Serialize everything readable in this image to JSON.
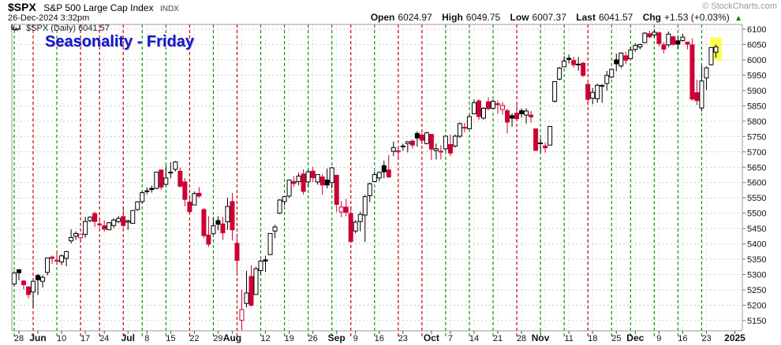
{
  "header": {
    "symbol": "$SPX",
    "name": "S&P 500 Large Cap Index",
    "exchange": "INDX",
    "datetime": "26-Dec-2024 3:32pm",
    "copyright": "© StockCharts.com",
    "quote": {
      "open_label": "Open",
      "open": "6024.97",
      "high_label": "High",
      "high": "6049.75",
      "low_label": "Low",
      "low": "6007.37",
      "last_label": "Last",
      "last": "6041.57",
      "chg_label": "Chg",
      "chg": "+1.53 (+0.03%)",
      "direction_glyph": "▲"
    }
  },
  "legend": {
    "series_label": "$SPX (Daily) 6041.57"
  },
  "annotation": {
    "title": "Seasonality - Friday"
  },
  "colors": {
    "candle_up": "#000000",
    "candle_down": "#cc0033",
    "friday_line_green": "#009900",
    "friday_line_red": "#cc0000",
    "grid": "#cccccc",
    "week_grid": "#c6c6c6",
    "border": "#999999",
    "axis_text": "#111111",
    "highlight": "#ffff55",
    "annotation_blue": "#1313d6",
    "chg_green": "#007700"
  },
  "chart_data": {
    "type": "candlestick",
    "title": "Seasonality - Friday",
    "symbol": "$SPX",
    "timeframe": "Daily",
    "last_value": 6041.57,
    "y_axis": {
      "min": 5150,
      "max": 6100,
      "step": 50,
      "side": "right",
      "grid": true
    },
    "x_labels": [
      [
        "28",
        1,
        0
      ],
      [
        "Jun",
        5,
        1
      ],
      [
        "10",
        10,
        0
      ],
      [
        "17",
        15,
        0
      ],
      [
        "24",
        19,
        0
      ],
      [
        "Jul",
        24,
        1
      ],
      [
        "8",
        28,
        0
      ],
      [
        "15",
        33,
        0
      ],
      [
        "22",
        38,
        0
      ],
      [
        "29",
        43,
        0
      ],
      [
        "Aug",
        46,
        1
      ],
      [
        "12",
        53,
        0
      ],
      [
        "19",
        58,
        0
      ],
      [
        "26",
        63,
        0
      ],
      [
        "Sep",
        68,
        1
      ],
      [
        "9",
        72,
        0
      ],
      [
        "16",
        77,
        0
      ],
      [
        "23",
        82,
        0
      ],
      [
        "Oct",
        88,
        1
      ],
      [
        "7",
        92,
        0
      ],
      [
        "14",
        97,
        0
      ],
      [
        "21",
        102,
        0
      ],
      [
        "28",
        107,
        0
      ],
      [
        "Nov",
        111,
        1
      ],
      [
        "11",
        117,
        0
      ],
      [
        "18",
        122,
        0
      ],
      [
        "25",
        127,
        0
      ],
      [
        "Dec",
        131,
        1
      ],
      [
        "9",
        136,
        0
      ],
      [
        "16",
        141,
        0
      ],
      [
        "23",
        146,
        0
      ],
      [
        "2025",
        152,
        1
      ]
    ],
    "friday_lines": [
      [
        0,
        "green"
      ],
      [
        4,
        "red"
      ],
      [
        9,
        "green"
      ],
      [
        14,
        "red"
      ],
      [
        18,
        "red"
      ],
      [
        23,
        "red"
      ],
      [
        27,
        "green"
      ],
      [
        32,
        "green"
      ],
      [
        37,
        "red"
      ],
      [
        42,
        "green"
      ],
      [
        47,
        "red"
      ],
      [
        52,
        "green"
      ],
      [
        57,
        "green"
      ],
      [
        62,
        "green"
      ],
      [
        67,
        "green"
      ],
      [
        71,
        "red"
      ],
      [
        76,
        "green"
      ],
      [
        81,
        "red"
      ],
      [
        86,
        "red"
      ],
      [
        91,
        "green"
      ],
      [
        96,
        "green"
      ],
      [
        101,
        "green"
      ],
      [
        106,
        "red"
      ],
      [
        111,
        "green"
      ],
      [
        116,
        "green"
      ],
      [
        121,
        "red"
      ],
      [
        126,
        "green"
      ],
      [
        130,
        "green"
      ],
      [
        135,
        "green"
      ],
      [
        140,
        "green"
      ],
      [
        145,
        "green"
      ]
    ],
    "monday_gridlines": [
      1,
      5,
      10,
      15,
      19,
      24,
      28,
      33,
      38,
      43,
      48,
      53,
      58,
      63,
      68,
      72,
      77,
      82,
      87,
      92,
      97,
      102,
      107,
      112,
      117,
      122,
      127,
      131,
      136,
      141,
      146
    ],
    "highlight_last_candle": true,
    "candles": [
      [
        "May 24",
        5269,
        5311,
        5262,
        5305
      ],
      [
        "May 28",
        5316,
        5316,
        5281,
        5306
      ],
      [
        "May 29",
        5279,
        5282,
        5252,
        5267
      ],
      [
        "May 30",
        5260,
        5260,
        5222,
        5235
      ],
      [
        "May 31",
        5243,
        5280,
        5192,
        5278
      ],
      [
        "Jun 3",
        5297,
        5302,
        5234,
        5283
      ],
      [
        "Jun 4",
        5278,
        5298,
        5258,
        5291
      ],
      [
        "Jun 5",
        5307,
        5354,
        5297,
        5354
      ],
      [
        "Jun 6",
        5357,
        5362,
        5335,
        5353
      ],
      [
        "Jun 7",
        5344,
        5375,
        5331,
        5347
      ],
      [
        "Jun 10",
        5341,
        5365,
        5331,
        5361
      ],
      [
        "Jun 11",
        5353,
        5377,
        5327,
        5375
      ],
      [
        "Jun 12",
        5410,
        5447,
        5402,
        5421
      ],
      [
        "Jun 13",
        5425,
        5441,
        5413,
        5434
      ],
      [
        "Jun 14",
        5420,
        5433,
        5405,
        5432
      ],
      [
        "Jun 17",
        5431,
        5488,
        5420,
        5473
      ],
      [
        "Jun 18",
        5476,
        5490,
        5471,
        5487
      ],
      [
        "Jun 20",
        5499,
        5505,
        5455,
        5473
      ],
      [
        "Jun 21",
        5464,
        5478,
        5452,
        5465
      ],
      [
        "Jun 24",
        5459,
        5476,
        5440,
        5448
      ],
      [
        "Jun 25",
        5446,
        5472,
        5446,
        5469
      ],
      [
        "Jun 26",
        5460,
        5483,
        5452,
        5478
      ],
      [
        "Jun 27",
        5473,
        5491,
        5467,
        5483
      ],
      [
        "Jun 28",
        5489,
        5523,
        5452,
        5460
      ],
      [
        "Jul 1",
        5471,
        5479,
        5446,
        5475
      ],
      [
        "Jul 2",
        5467,
        5510,
        5467,
        5509
      ],
      [
        "Jul 3",
        5512,
        5539,
        5508,
        5537
      ],
      [
        "Jul 5",
        5538,
        5570,
        5531,
        5567
      ],
      [
        "Jul 8",
        5572,
        5584,
        5562,
        5573
      ],
      [
        "Jul 9",
        5581,
        5590,
        5567,
        5577
      ],
      [
        "Jul 10",
        5581,
        5634,
        5578,
        5634
      ],
      [
        "Jul 11",
        5641,
        5642,
        5576,
        5585
      ],
      [
        "Jul 12",
        5594,
        5655,
        5591,
        5615
      ],
      [
        "Jul 15",
        5634,
        5666,
        5614,
        5631
      ],
      [
        "Jul 16",
        5643,
        5670,
        5636,
        5667
      ],
      [
        "Jul 17",
        5637,
        5649,
        5584,
        5588
      ],
      [
        "Jul 18",
        5602,
        5615,
        5522,
        5545
      ],
      [
        "Jul 19",
        5536,
        5557,
        5497,
        5505
      ],
      [
        "Jul 22",
        5527,
        5571,
        5527,
        5564
      ],
      [
        "Jul 23",
        5565,
        5585,
        5550,
        5556
      ],
      [
        "Jul 24",
        5512,
        5517,
        5419,
        5427
      ],
      [
        "Jul 25",
        5429,
        5491,
        5390,
        5399
      ],
      [
        "Jul 26",
        5433,
        5488,
        5430,
        5459
      ],
      [
        "Jul 29",
        5476,
        5490,
        5444,
        5464
      ],
      [
        "Jul 30",
        5465,
        5488,
        5413,
        5436
      ],
      [
        "Jul 31",
        5472,
        5551,
        5446,
        5522
      ],
      [
        "Aug 1",
        5538,
        5566,
        5411,
        5446
      ],
      [
        "Aug 2",
        5402,
        5427,
        5302,
        5346
      ],
      [
        "Aug 5",
        5151,
        5250,
        5119,
        5186
      ],
      [
        "Aug 6",
        5206,
        5312,
        5193,
        5240
      ],
      [
        "Aug 7",
        5294,
        5330,
        5196,
        5200
      ],
      [
        "Aug 8",
        5235,
        5325,
        5234,
        5319
      ],
      [
        "Aug 9",
        5313,
        5349,
        5300,
        5344
      ],
      [
        "Aug 12",
        5348,
        5361,
        5309,
        5344
      ],
      [
        "Aug 13",
        5365,
        5435,
        5364,
        5434
      ],
      [
        "Aug 14",
        5442,
        5462,
        5419,
        5455
      ],
      [
        "Aug 15",
        5500,
        5546,
        5497,
        5543
      ],
      [
        "Aug 16",
        5538,
        5555,
        5525,
        5554
      ],
      [
        "Aug 19",
        5556,
        5609,
        5550,
        5608
      ],
      [
        "Aug 20",
        5603,
        5621,
        5585,
        5597
      ],
      [
        "Aug 21",
        5603,
        5632,
        5591,
        5621
      ],
      [
        "Aug 22",
        5628,
        5643,
        5560,
        5571
      ],
      [
        "Aug 23",
        5602,
        5642,
        5585,
        5635
      ],
      [
        "Aug 26",
        5637,
        5651,
        5602,
        5616
      ],
      [
        "Aug 27",
        5602,
        5627,
        5593,
        5626
      ],
      [
        "Aug 28",
        5618,
        5627,
        5560,
        5592
      ],
      [
        "Aug 29",
        5608,
        5646,
        5581,
        5592
      ],
      [
        "Aug 30",
        5600,
        5651,
        5581,
        5648
      ],
      [
        "Sep 3",
        5624,
        5624,
        5504,
        5529
      ],
      [
        "Sep 4",
        5504,
        5540,
        5487,
        5520
      ],
      [
        "Sep 5",
        5520,
        5547,
        5490,
        5503
      ],
      [
        "Sep 6",
        5499,
        5523,
        5403,
        5408
      ],
      [
        "Sep 9",
        5442,
        5477,
        5434,
        5471
      ],
      [
        "Sep 10",
        5473,
        5505,
        5441,
        5496
      ],
      [
        "Sep 11",
        5494,
        5560,
        5406,
        5554
      ],
      [
        "Sep 12",
        5557,
        5600,
        5536,
        5596
      ],
      [
        "Sep 13",
        5603,
        5636,
        5601,
        5626
      ],
      [
        "Sep 16",
        5615,
        5636,
        5604,
        5633
      ],
      [
        "Sep 17",
        5655,
        5671,
        5614,
        5635
      ],
      [
        "Sep 18",
        5641,
        5690,
        5615,
        5618
      ],
      [
        "Sep 19",
        5702,
        5734,
        5686,
        5714
      ],
      [
        "Sep 20",
        5700,
        5717,
        5674,
        5703
      ],
      [
        "Sep 23",
        5718,
        5727,
        5704,
        5719
      ],
      [
        "Sep 24",
        5727,
        5735,
        5698,
        5733
      ],
      [
        "Sep 25",
        5735,
        5741,
        5711,
        5722
      ],
      [
        "Sep 26",
        5760,
        5767,
        5717,
        5745
      ],
      [
        "Sep 27",
        5755,
        5763,
        5726,
        5738
      ],
      [
        "Sep 30",
        5727,
        5765,
        5725,
        5762
      ],
      [
        "Oct 1",
        5757,
        5757,
        5674,
        5709
      ],
      [
        "Oct 2",
        5704,
        5727,
        5675,
        5710
      ],
      [
        "Oct 3",
        5702,
        5722,
        5675,
        5700
      ],
      [
        "Oct 4",
        5710,
        5753,
        5702,
        5751
      ],
      [
        "Oct 7",
        5724,
        5757,
        5686,
        5696
      ],
      [
        "Oct 8",
        5719,
        5757,
        5714,
        5751
      ],
      [
        "Oct 9",
        5751,
        5796,
        5745,
        5792
      ],
      [
        "Oct 10",
        5778,
        5795,
        5764,
        5780
      ],
      [
        "Oct 11",
        5775,
        5822,
        5775,
        5815
      ],
      [
        "Oct 14",
        5824,
        5871,
        5824,
        5860
      ],
      [
        "Oct 15",
        5866,
        5872,
        5804,
        5815
      ],
      [
        "Oct 16",
        5810,
        5846,
        5805,
        5842
      ],
      [
        "Oct 17",
        5863,
        5878,
        5835,
        5841
      ],
      [
        "Oct 18",
        5842,
        5870,
        5841,
        5865
      ],
      [
        "Oct 21",
        5857,
        5867,
        5824,
        5854
      ],
      [
        "Oct 22",
        5838,
        5863,
        5821,
        5851
      ],
      [
        "Oct 23",
        5834,
        5840,
        5761,
        5797
      ],
      [
        "Oct 24",
        5818,
        5826,
        5782,
        5810
      ],
      [
        "Oct 25",
        5826,
        5862,
        5803,
        5808
      ],
      [
        "Oct 28",
        5834,
        5842,
        5811,
        5824
      ],
      [
        "Oct 29",
        5820,
        5842,
        5792,
        5833
      ],
      [
        "Oct 30",
        5820,
        5834,
        5795,
        5814
      ],
      [
        "Oct 31",
        5775,
        5775,
        5702,
        5705
      ],
      [
        "Nov 1",
        5727,
        5745,
        5697,
        5729
      ],
      [
        "Nov 4",
        5719,
        5730,
        5697,
        5713
      ],
      [
        "Nov 5",
        5722,
        5784,
        5722,
        5783
      ],
      [
        "Nov 6",
        5865,
        5930,
        5861,
        5929
      ],
      [
        "Nov 7",
        5937,
        5977,
        5934,
        5973
      ],
      [
        "Nov 8",
        5977,
        6012,
        5977,
        5996
      ],
      [
        "Nov 11",
        6005,
        6017,
        5988,
        6001
      ],
      [
        "Nov 12",
        5998,
        6010,
        5975,
        5984
      ],
      [
        "Nov 13",
        5986,
        6009,
        5965,
        5985
      ],
      [
        "Nov 14",
        5989,
        5993,
        5944,
        5949
      ],
      [
        "Nov 15",
        5920,
        5925,
        5853,
        5871
      ],
      [
        "Nov 18",
        5875,
        5908,
        5855,
        5894
      ],
      [
        "Nov 19",
        5873,
        5923,
        5860,
        5917
      ],
      [
        "Nov 20",
        5914,
        5920,
        5860,
        5917
      ],
      [
        "Nov 21",
        5923,
        5964,
        5900,
        5949
      ],
      [
        "Nov 22",
        5944,
        5972,
        5940,
        5969
      ],
      [
        "Nov 25",
        6000,
        6020,
        5963,
        5987
      ],
      [
        "Nov 26",
        5980,
        6025,
        5973,
        6022
      ],
      [
        "Nov 27",
        6013,
        6027,
        5986,
        5999
      ],
      [
        "Nov 29",
        6004,
        6044,
        6003,
        6032
      ],
      [
        "Dec 2",
        6034,
        6054,
        6026,
        6047
      ],
      [
        "Dec 3",
        6042,
        6053,
        6034,
        6050
      ],
      [
        "Dec 4",
        6056,
        6090,
        6054,
        6087
      ],
      [
        "Dec 5",
        6085,
        6095,
        6071,
        6075
      ],
      [
        "Dec 6",
        6081,
        6099,
        6073,
        6090
      ],
      [
        "Dec 9",
        6088,
        6091,
        6045,
        6053
      ],
      [
        "Dec 10",
        6049,
        6057,
        6021,
        6035
      ],
      [
        "Dec 11",
        6049,
        6092,
        6042,
        6084
      ],
      [
        "Dec 12",
        6075,
        6079,
        6045,
        6051
      ],
      [
        "Dec 13",
        6062,
        6078,
        6035,
        6051
      ],
      [
        "Dec 16",
        6063,
        6085,
        6059,
        6074
      ],
      [
        "Dec 17",
        6058,
        6058,
        6034,
        6051
      ],
      [
        "Dec 18",
        6049,
        6070,
        5867,
        5872
      ],
      [
        "Dec 19",
        5893,
        5935,
        5852,
        5867
      ],
      [
        "Dec 20",
        5843,
        5982,
        5832,
        5931
      ],
      [
        "Dec 23",
        5941,
        5978,
        5902,
        5974
      ],
      [
        "Dec 24",
        5984,
        6041,
        5982,
        6040
      ],
      [
        "Dec 26",
        6025,
        6050,
        6007,
        6042
      ]
    ]
  }
}
